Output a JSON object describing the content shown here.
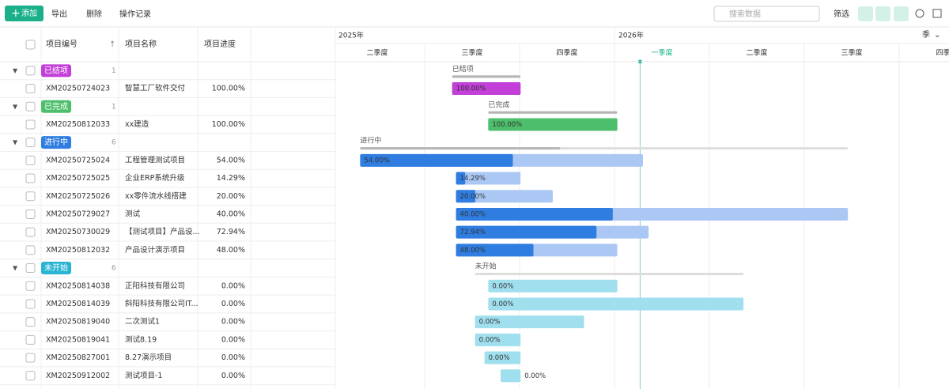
{
  "toolbar": {
    "add": "添加",
    "export": "导出",
    "delete": "删除",
    "log": "操作记录",
    "search_placeholder": "搜索数据",
    "filter": "筛选"
  },
  "columns": [
    "项目编号",
    "项目名称",
    "项目进度"
  ],
  "timeline": {
    "years": [
      {
        "label": "2025年",
        "start": -1
      },
      {
        "label": "2026年",
        "start": 3
      }
    ],
    "quarters": [
      "二季度",
      "三季度",
      "四季度",
      "一季度",
      "二季度",
      "三季度",
      "四季度"
    ],
    "scale": "季",
    "today": 3.27
  },
  "groups": [
    {
      "label": "已结项",
      "count": 1,
      "color": "#c23fd8",
      "light": "#c23fd8",
      "start": 1.29,
      "end": 2.01,
      "progress": 100,
      "rows": [
        {
          "code": "XM20250724023",
          "name": "智慧工厂软件交付",
          "progress": 100,
          "progress_label": "100.00%",
          "start": 1.29,
          "end": 2.01
        }
      ]
    },
    {
      "label": "已完成",
      "count": 1,
      "color": "#4dbf6c",
      "light": "#4dbf6c",
      "start": 1.67,
      "end": 3.03,
      "progress": 100,
      "rows": [
        {
          "code": "XM20250812033",
          "name": "xx建造",
          "progress": 100,
          "progress_label": "100.00%",
          "start": 1.67,
          "end": 3.03
        }
      ]
    },
    {
      "label": "进行中",
      "count": 6,
      "color": "#2f7de1",
      "light": "#abc8f5",
      "start": 0.32,
      "end": 5.46,
      "progress": 41,
      "rows": [
        {
          "code": "XM20250725024",
          "name": "工程管理测试项目",
          "progress": 54,
          "progress_label": "54.00%",
          "start": 0.32,
          "end": 3.3
        },
        {
          "code": "XM20250725025",
          "name": "企业ERP系统升级",
          "progress": 14.29,
          "progress_label": "14.29%",
          "start": 1.33,
          "end": 2.01
        },
        {
          "code": "XM20250725026",
          "name": "xx零件流水线搭建",
          "progress": 20,
          "progress_label": "20.00%",
          "start": 1.33,
          "end": 2.35
        },
        {
          "code": "XM20250729027",
          "name": "测试",
          "progress": 40,
          "progress_label": "40.00%",
          "start": 1.33,
          "end": 5.46
        },
        {
          "code": "XM20250730029",
          "name": "【测试项目】产品设...",
          "progress": 72.94,
          "progress_label": "72.94%",
          "start": 1.33,
          "end": 3.36
        },
        {
          "code": "XM20250812032",
          "name": "产品设计演示项目",
          "progress": 48,
          "progress_label": "48.00%",
          "start": 1.33,
          "end": 3.03
        }
      ]
    },
    {
      "label": "未开始",
      "count": 6,
      "color": "#29b4d3",
      "light": "#9fdfee",
      "start": 1.53,
      "end": 4.36,
      "progress": 0,
      "rows": [
        {
          "code": "XM20250814038",
          "name": "正阳科技有限公司",
          "progress": 0,
          "progress_label": "0.00%",
          "start": 1.67,
          "end": 3.03
        },
        {
          "code": "XM20250814039",
          "name": "斜阳科技有限公司IT...",
          "progress": 0,
          "progress_label": "0.00%",
          "start": 1.67,
          "end": 4.36
        },
        {
          "code": "XM20250819040",
          "name": "二次测试1",
          "progress": 0,
          "progress_label": "0.00%",
          "start": 1.53,
          "end": 2.68
        },
        {
          "code": "XM20250819041",
          "name": "测试8.19",
          "progress": 0,
          "progress_label": "0.00%",
          "start": 1.53,
          "end": 2.01
        },
        {
          "code": "XM20250827001",
          "name": "8.27演示项目",
          "progress": 0,
          "progress_label": "0.00%",
          "start": 1.63,
          "end": 2.01
        },
        {
          "code": "XM20250912002",
          "name": "测试项目-1",
          "progress": 0,
          "progress_label": "0.00%",
          "start": 1.8,
          "end": 2.01
        }
      ]
    }
  ]
}
